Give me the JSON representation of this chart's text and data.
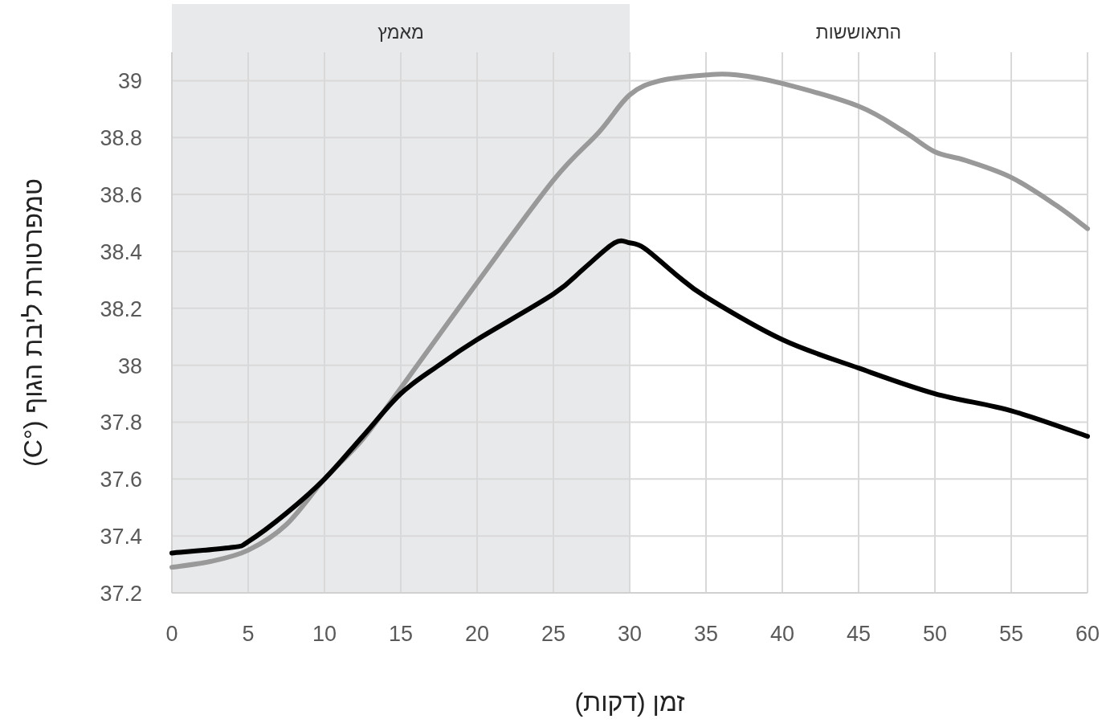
{
  "chart_data": {
    "type": "line",
    "xlabel": "זמן (דקות)",
    "ylabel": "טמפרטורת ליבת הגוף (°C)",
    "xlim": [
      0,
      60
    ],
    "xticks": [
      0,
      5,
      10,
      15,
      20,
      25,
      30,
      35,
      40,
      45,
      50,
      55,
      60
    ],
    "ylim": [
      37.2,
      39.1
    ],
    "yticks": [
      37.2,
      37.4,
      37.6,
      37.8,
      38,
      38.2,
      38.4,
      38.6,
      38.8,
      39
    ],
    "grid": true,
    "bands": [
      {
        "axis": "x",
        "from": 0,
        "to": 30,
        "label": "מאמץ",
        "color": "#e8e9eb"
      }
    ],
    "annotations": [
      "התאוששות"
    ],
    "series": [
      {
        "color": "#999999",
        "x": [
          0,
          2.5,
          5,
          7.5,
          10,
          12.5,
          15,
          20,
          25,
          28,
          30,
          32,
          35,
          37,
          40,
          45,
          48,
          50,
          52,
          55,
          58,
          60
        ],
        "values": [
          37.29,
          37.31,
          37.35,
          37.44,
          37.6,
          37.74,
          37.92,
          38.29,
          38.65,
          38.82,
          38.95,
          39.0,
          39.02,
          39.02,
          38.99,
          38.91,
          38.82,
          38.75,
          38.72,
          38.66,
          38.56,
          38.48
        ]
      },
      {
        "color": "#000000",
        "x": [
          0,
          4,
          5,
          7.5,
          10,
          12.5,
          15,
          17.5,
          20,
          25,
          27,
          29,
          30,
          31,
          33,
          35,
          40,
          45,
          50,
          55,
          60
        ],
        "values": [
          37.34,
          37.36,
          37.38,
          37.48,
          37.6,
          37.75,
          37.9,
          38.0,
          38.09,
          38.25,
          38.34,
          38.43,
          38.43,
          38.41,
          38.32,
          38.24,
          38.09,
          37.99,
          37.9,
          37.84,
          37.75
        ]
      }
    ]
  }
}
